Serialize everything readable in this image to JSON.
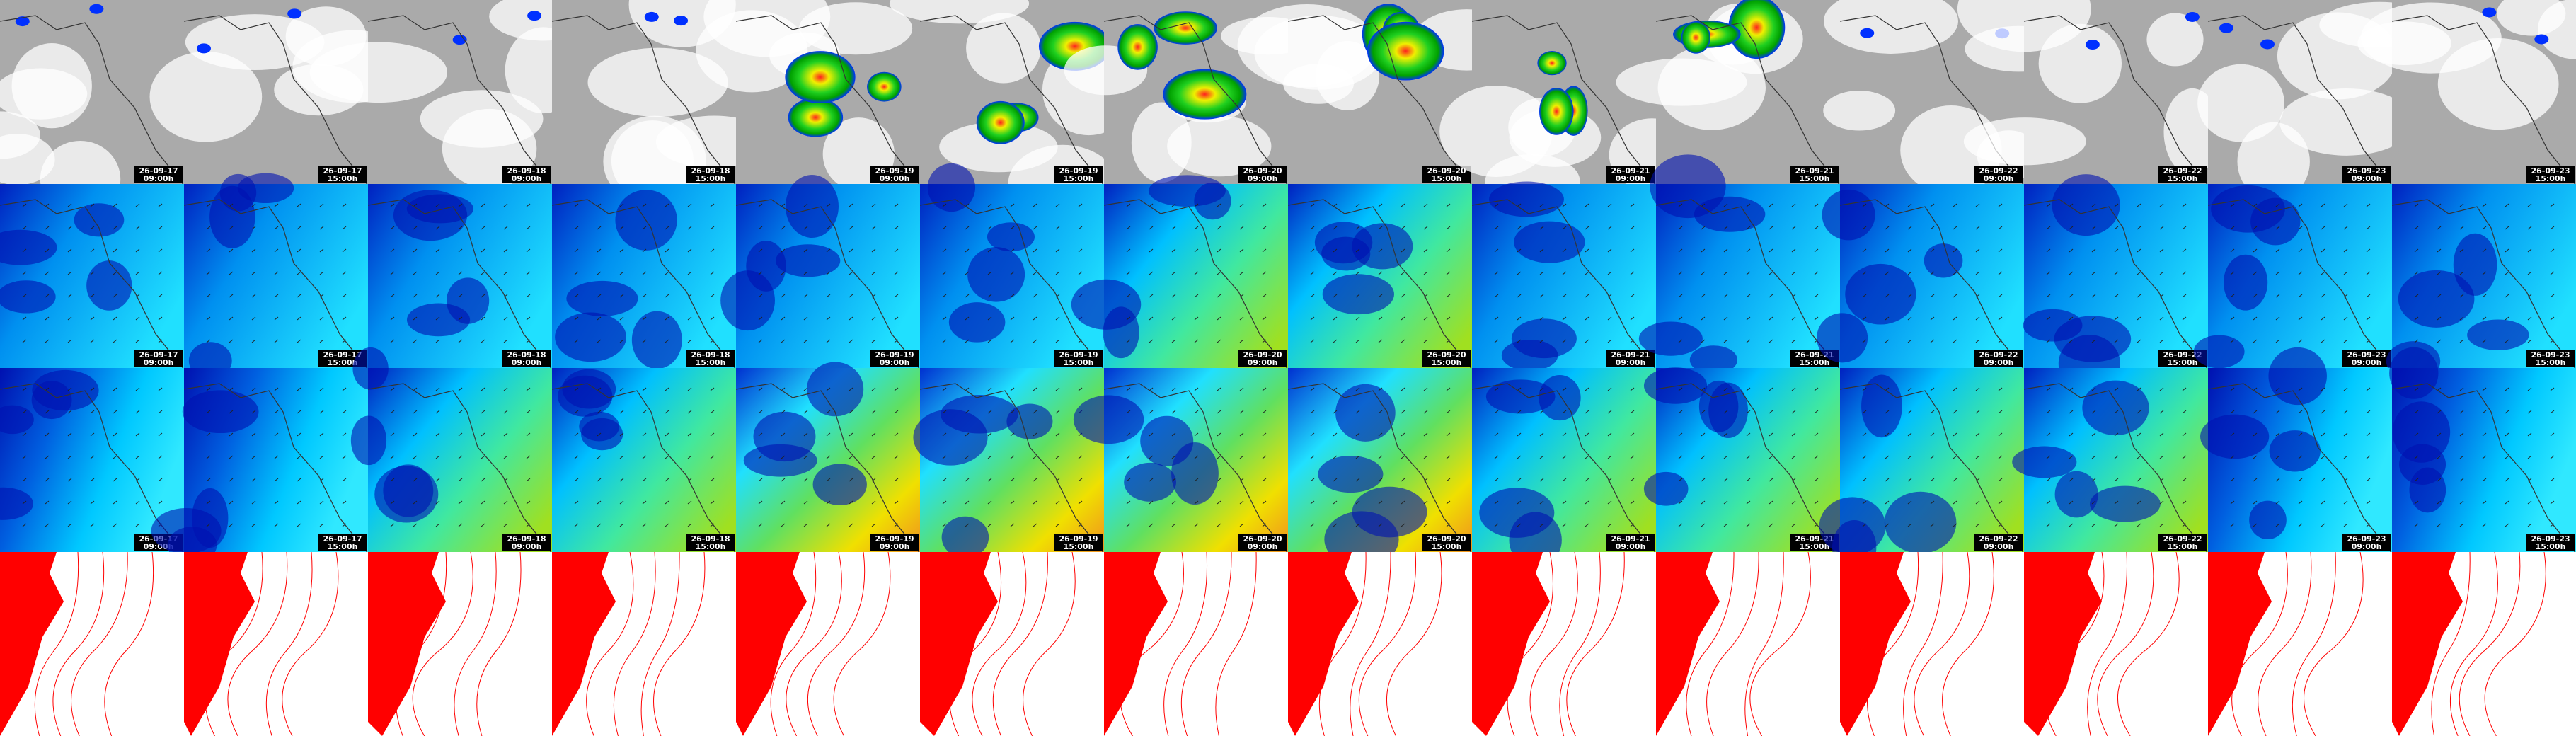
{
  "rows": [
    [
      {
        "date": "26-09-17",
        "time": "09:00h"
      },
      {
        "date": "26-09-17",
        "time": "15:00h"
      },
      {
        "date": "26-09-18",
        "time": "09:00h"
      },
      {
        "date": "26-09-18",
        "time": "15:00h"
      },
      {
        "date": "26-09-19",
        "time": "09:00h"
      },
      {
        "date": "26-09-19",
        "time": "15:00h"
      },
      {
        "date": "26-09-20",
        "time": "09:00h"
      },
      {
        "date": "26-09-20",
        "time": "15:00h"
      },
      {
        "date": "26-09-21",
        "time": "09:00h"
      },
      {
        "date": "26-09-21",
        "time": "15:00h"
      },
      {
        "date": "26-09-22",
        "time": "09:00h"
      },
      {
        "date": "26-09-22",
        "time": "15:00h"
      },
      {
        "date": "26-09-23",
        "time": "09:00h"
      },
      {
        "date": "26-09-23",
        "time": "15:00h"
      }
    ],
    [
      {
        "date": "26-09-17",
        "time": "09:00h"
      },
      {
        "date": "26-09-17",
        "time": "15:00h"
      },
      {
        "date": "26-09-18",
        "time": "09:00h"
      },
      {
        "date": "26-09-18",
        "time": "15:00h"
      },
      {
        "date": "26-09-19",
        "time": "09:00h"
      },
      {
        "date": "26-09-19",
        "time": "15:00h"
      },
      {
        "date": "26-09-20",
        "time": "09:00h"
      },
      {
        "date": "26-09-20",
        "time": "15:00h"
      },
      {
        "date": "26-09-21",
        "time": "09:00h"
      },
      {
        "date": "26-09-21",
        "time": "15:00h"
      },
      {
        "date": "26-09-22",
        "time": "09:00h"
      },
      {
        "date": "26-09-22",
        "time": "15:00h"
      },
      {
        "date": "26-09-23",
        "time": "09:00h"
      },
      {
        "date": "26-09-23",
        "time": "15:00h"
      }
    ],
    [
      {
        "date": "26-09-17",
        "time": "09:00h"
      },
      {
        "date": "26-09-17",
        "time": "15:00h"
      },
      {
        "date": "26-09-18",
        "time": "09:00h"
      },
      {
        "date": "26-09-18",
        "time": "15:00h"
      },
      {
        "date": "26-09-19",
        "time": "09:00h"
      },
      {
        "date": "26-09-19",
        "time": "15:00h"
      },
      {
        "date": "26-09-20",
        "time": "09:00h"
      },
      {
        "date": "26-09-20",
        "time": "15:00h"
      },
      {
        "date": "26-09-21",
        "time": "09:00h"
      },
      {
        "date": "26-09-21",
        "time": "15:00h"
      },
      {
        "date": "26-09-22",
        "time": "09:00h"
      },
      {
        "date": "26-09-22",
        "time": "15:00h"
      },
      {
        "date": "26-09-23",
        "time": "09:00h"
      },
      {
        "date": "26-09-23",
        "time": "15:00h"
      }
    ]
  ]
}
